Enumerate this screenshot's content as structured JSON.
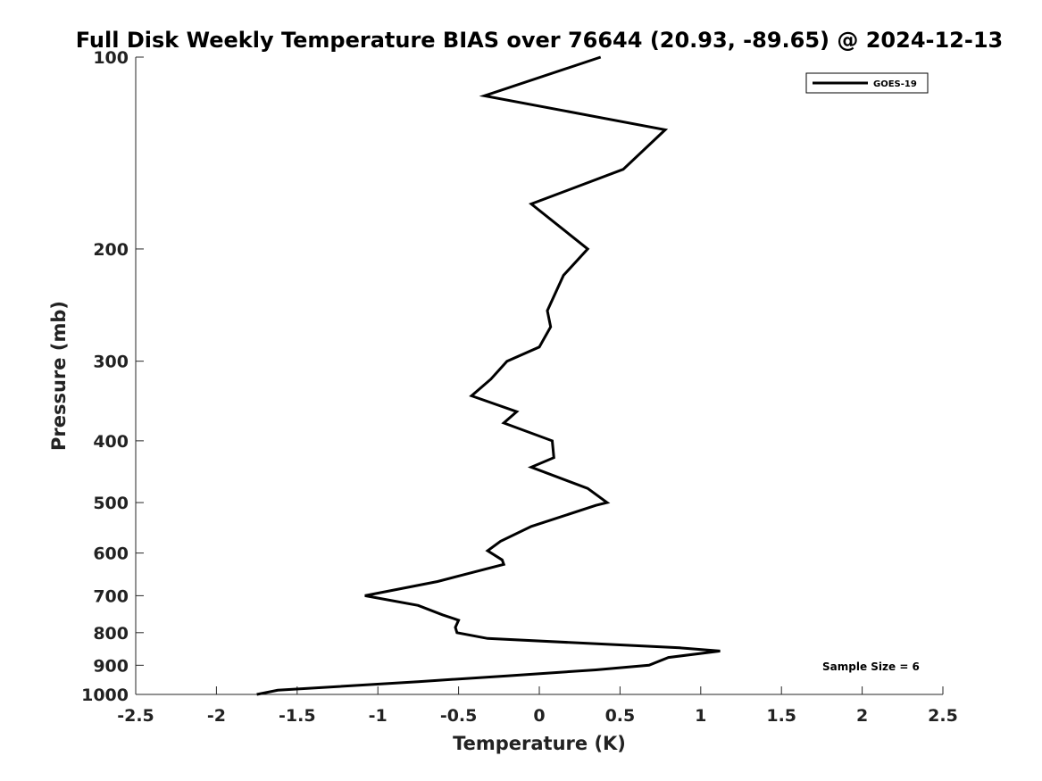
{
  "chart_data": {
    "type": "line",
    "title": "Full Disk Weekly Temperature BIAS over 76644 (20.93, -89.65) @ 2024-12-13",
    "xlabel": "Temperature (K)",
    "ylabel": "Pressure (mb)",
    "xlim": [
      -2.5,
      2.5
    ],
    "ylim": [
      1000,
      100
    ],
    "yscale": "log",
    "x_ticks": [
      -2.5,
      -2,
      -1.5,
      -1,
      -0.5,
      0,
      0.5,
      1,
      1.5,
      2,
      2.5
    ],
    "x_tick_labels": [
      "-2.5",
      "-2",
      "-1.5",
      "-1",
      "-0.5",
      "0",
      "0.5",
      "1",
      "1.5",
      "2",
      "2.5"
    ],
    "y_ticks": [
      100,
      200,
      300,
      400,
      500,
      600,
      700,
      800,
      900,
      1000
    ],
    "y_tick_labels": [
      "100",
      "200",
      "300",
      "400",
      "500",
      "600",
      "700",
      "800",
      "900",
      "1000"
    ],
    "grid": false,
    "legend_position": "top-right",
    "series": [
      {
        "name": "GOES-19",
        "color": "#000000",
        "points": [
          {
            "x": 0.38,
            "y": 100
          },
          {
            "x": -0.34,
            "y": 115
          },
          {
            "x": 0.78,
            "y": 130
          },
          {
            "x": 0.52,
            "y": 150
          },
          {
            "x": -0.05,
            "y": 170
          },
          {
            "x": 0.3,
            "y": 200
          },
          {
            "x": 0.15,
            "y": 220
          },
          {
            "x": 0.05,
            "y": 250
          },
          {
            "x": 0.07,
            "y": 265
          },
          {
            "x": 0.0,
            "y": 285
          },
          {
            "x": -0.2,
            "y": 300
          },
          {
            "x": -0.3,
            "y": 320
          },
          {
            "x": -0.42,
            "y": 340
          },
          {
            "x": -0.14,
            "y": 360
          },
          {
            "x": -0.22,
            "y": 375
          },
          {
            "x": 0.08,
            "y": 400
          },
          {
            "x": 0.09,
            "y": 425
          },
          {
            "x": -0.05,
            "y": 440
          },
          {
            "x": 0.3,
            "y": 475
          },
          {
            "x": 0.42,
            "y": 500
          },
          {
            "x": 0.35,
            "y": 505
          },
          {
            "x": -0.05,
            "y": 545
          },
          {
            "x": -0.24,
            "y": 575
          },
          {
            "x": -0.32,
            "y": 595
          },
          {
            "x": -0.23,
            "y": 615
          },
          {
            "x": -0.22,
            "y": 625
          },
          {
            "x": -0.48,
            "y": 650
          },
          {
            "x": -0.63,
            "y": 665
          },
          {
            "x": -1.08,
            "y": 700
          },
          {
            "x": -0.75,
            "y": 725
          },
          {
            "x": -0.6,
            "y": 750
          },
          {
            "x": -0.5,
            "y": 765
          },
          {
            "x": -0.52,
            "y": 785
          },
          {
            "x": -0.51,
            "y": 800
          },
          {
            "x": -0.32,
            "y": 817
          },
          {
            "x": 0.87,
            "y": 845
          },
          {
            "x": 1.12,
            "y": 855
          },
          {
            "x": 0.8,
            "y": 875
          },
          {
            "x": 0.68,
            "y": 900
          },
          {
            "x": 0.35,
            "y": 915
          },
          {
            "x": -0.2,
            "y": 935
          },
          {
            "x": -0.75,
            "y": 955
          },
          {
            "x": -1.62,
            "y": 985
          },
          {
            "x": -1.75,
            "y": 1000
          }
        ]
      }
    ],
    "annotations": [
      {
        "text": "Sample Size = 6"
      }
    ]
  }
}
